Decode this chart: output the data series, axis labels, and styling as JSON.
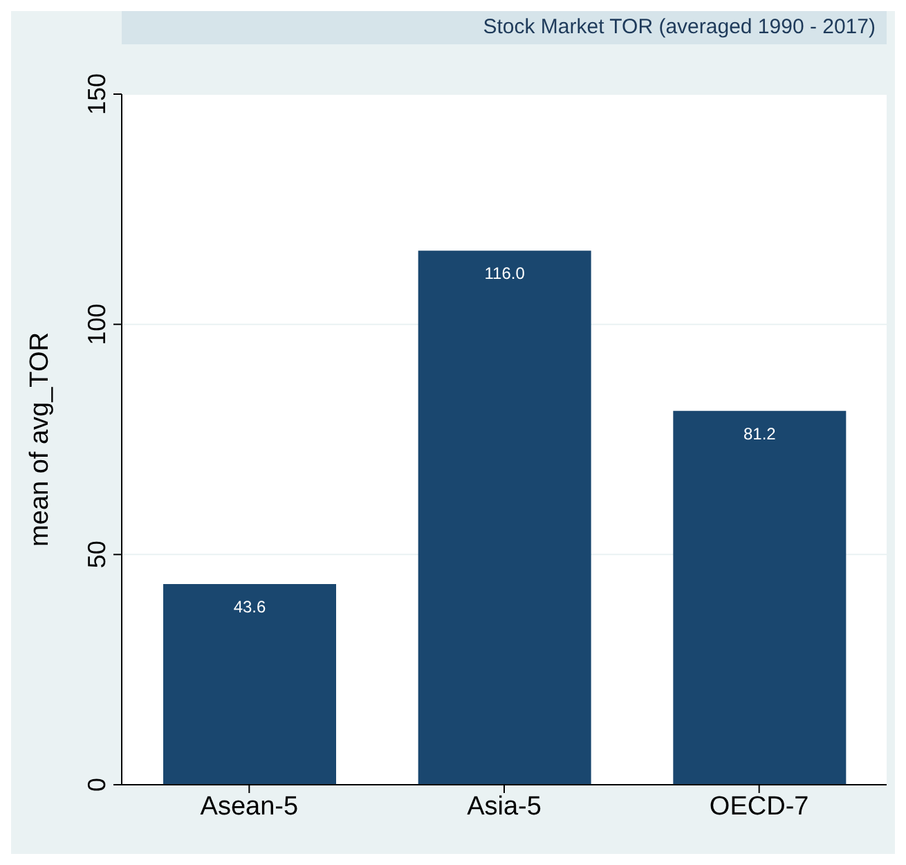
{
  "chart_data": {
    "type": "bar",
    "title": "Stock Market TOR (averaged 1990 - 2017)",
    "ylabel": "mean of avg_TOR",
    "categories": [
      "Asean-5",
      "Asia-5",
      "OECD-7"
    ],
    "values": [
      43.6,
      116.0,
      81.2
    ],
    "color": "#1a476f",
    "value_labels": [
      "43.6",
      "116.0",
      "81.2"
    ],
    "ylim": [
      0,
      150
    ],
    "yticks": [
      0,
      50,
      100,
      150
    ],
    "grid": "y"
  }
}
